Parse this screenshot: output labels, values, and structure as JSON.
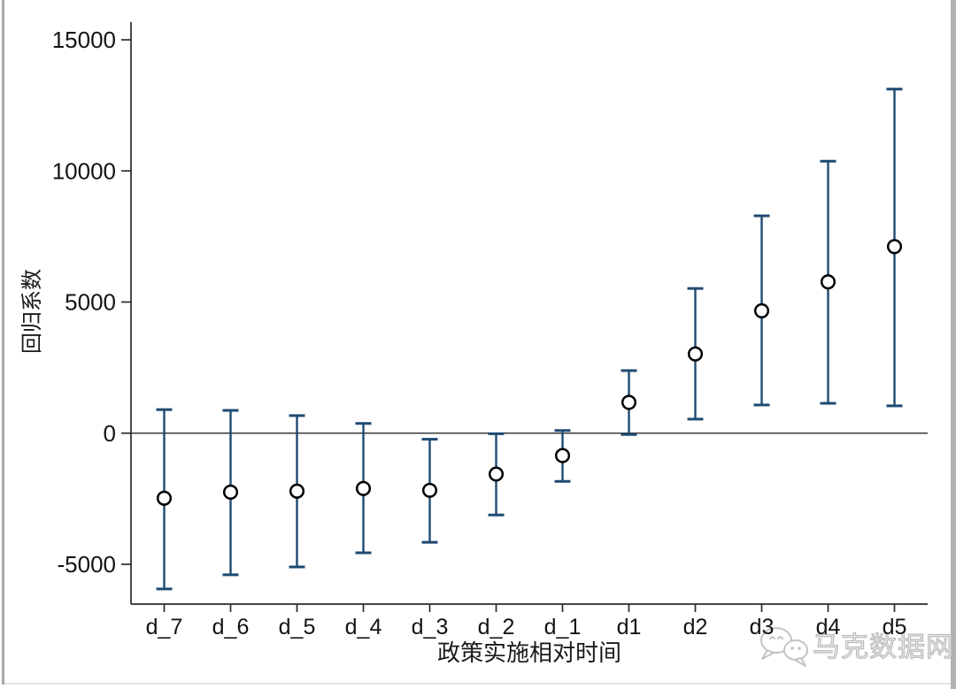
{
  "page": {
    "background": "#ffffff",
    "edge_colors": {
      "left": "#a8a8a8",
      "right": "#b2b2b2",
      "bottom": "#e3e3e3"
    }
  },
  "chart_data": {
    "type": "scatter",
    "subtype": "coefficient-plot-with-error-bars",
    "title": "",
    "xlabel": "政策实施相对时间",
    "ylabel": "回归系数",
    "categories": [
      "d_7",
      "d_6",
      "d_5",
      "d_4",
      "d_3",
      "d_2",
      "d_1",
      "d1",
      "d2",
      "d3",
      "d4",
      "d5"
    ],
    "series": [
      {
        "name": "回归系数",
        "values": [
          -2480,
          -2250,
          -2210,
          -2110,
          -2180,
          -1560,
          -855,
          1175,
          3020,
          4665,
          5770,
          7115
        ],
        "ci_lower": [
          -5940,
          -5400,
          -5100,
          -4560,
          -4160,
          -3120,
          -1840,
          -50,
          535,
          1075,
          1140,
          1040
        ],
        "ci_upper": [
          900,
          870,
          670,
          370,
          -230,
          -20,
          100,
          2385,
          5520,
          8290,
          10370,
          13120
        ]
      }
    ],
    "yticks": [
      -5000,
      0,
      5000,
      10000,
      15000
    ],
    "ytick_labels": [
      "-5000",
      "0",
      "5000",
      "10000",
      "15000"
    ],
    "ylim": [
      -6550,
      15650
    ],
    "grid": false,
    "zero_line": true,
    "legend_position": "none",
    "marker": "open-circle",
    "colors": {
      "ci_bar": "#1e4a72",
      "marker_stroke": "#000000",
      "marker_fill": "#ffffff",
      "axis": "#2b2b2b",
      "zero_line": "#3a3a3a",
      "tick_text": "#141414"
    }
  },
  "watermark": {
    "icon": "wechat-icon",
    "text": "马克数据网",
    "color": "#c3c3c3"
  }
}
